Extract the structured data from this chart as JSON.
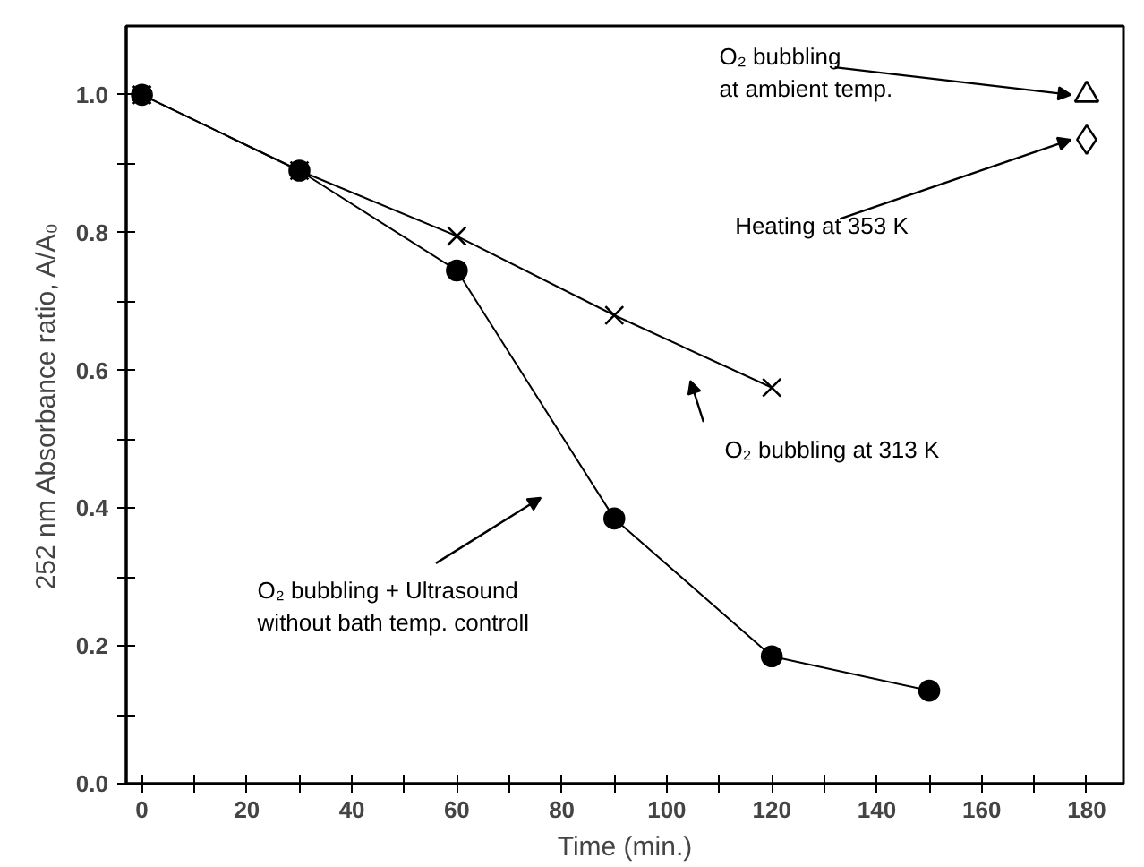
{
  "chart_data": {
    "type": "line",
    "xlabel": "Time (min.)",
    "ylabel": "252 nm Absorbance ratio, A/A₀",
    "xlim": [
      -3,
      187
    ],
    "ylim": [
      0,
      1.1
    ],
    "xticks": [
      0,
      {
        "value": 10,
        "label": null
      },
      20,
      {
        "value": 30,
        "label": null
      },
      40,
      {
        "value": 50,
        "label": null
      },
      60,
      {
        "value": 70,
        "label": null
      },
      80,
      {
        "value": 90,
        "label": null
      },
      100,
      {
        "value": 110,
        "label": null
      },
      120,
      {
        "value": 130,
        "label": null
      },
      140,
      {
        "value": 150,
        "label": null
      },
      160,
      {
        "value": 170,
        "label": null
      },
      180
    ],
    "yticks": [
      {
        "value": 0,
        "label": "0.0"
      },
      {
        "value": 0.1,
        "label": null
      },
      0.2,
      {
        "value": 0.3,
        "label": null
      },
      0.4,
      {
        "value": 0.5,
        "label": null
      },
      0.6,
      {
        "value": 0.7,
        "label": null
      },
      0.8,
      {
        "value": 0.9,
        "label": null
      },
      {
        "value": 1.0,
        "label": "1.0"
      }
    ],
    "grid": false,
    "series": [
      {
        "marker": "circle",
        "color": "#000000",
        "x": [
          0,
          30,
          60,
          90,
          120,
          150
        ],
        "values": [
          1.0,
          0.89,
          0.745,
          0.385,
          0.185,
          0.135
        ]
      },
      {
        "marker": "cross",
        "color": "#000000",
        "x": [
          0,
          30,
          60,
          90,
          120
        ],
        "values": [
          1.0,
          0.89,
          0.795,
          0.68,
          0.575
        ]
      },
      {
        "type": "scatter",
        "marker": "triangle",
        "color": "#000000",
        "x": [
          180
        ],
        "values": [
          1.0
        ]
      },
      {
        "type": "scatter",
        "marker": "diamond",
        "color": "#000000",
        "x": [
          180
        ],
        "values": [
          0.935
        ]
      }
    ],
    "annotations": [
      {
        "text": "O₂ bubbling\nat ambient temp.",
        "x": 180,
        "y": 1.0
      },
      {
        "text": "Heating at 353 K",
        "x": 180,
        "y": 0.935
      },
      "O₂ bubbling at 313 K",
      "O₂ bubbling + Ultrasound\nwithout bath temp. controll"
    ]
  }
}
